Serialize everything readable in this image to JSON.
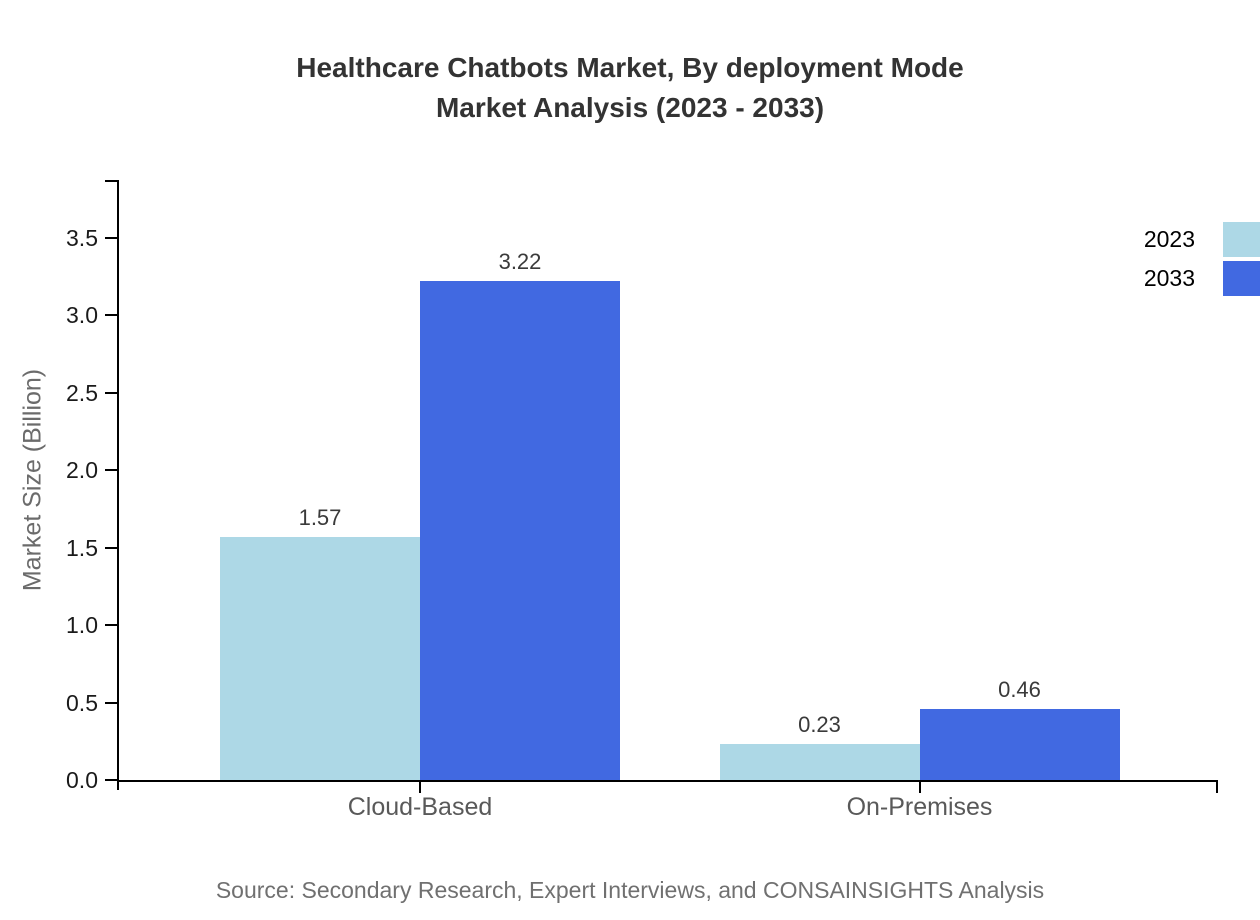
{
  "chart": {
    "title_line1": "Healthcare Chatbots Market, By deployment Mode",
    "title_line2": "Market Analysis (2023 - 2033)",
    "source": "Source: Secondary Research, Expert Interviews, and CONSAINSIGHTS Analysis"
  },
  "chart_data": {
    "type": "bar",
    "title": "Healthcare Chatbots Market, By deployment Mode Market Analysis (2023 - 2033)",
    "categories": [
      "Cloud-Based",
      "On-Premises"
    ],
    "series": [
      {
        "name": "2023",
        "color": "#add8e6",
        "values": [
          1.57,
          0.23
        ]
      },
      {
        "name": "2033",
        "color": "#4169e1",
        "values": [
          3.22,
          0.46
        ]
      }
    ],
    "xlabel": "",
    "ylabel": "Market Size (Billion)",
    "ylim": [
      0,
      3.87
    ],
    "yticks": [
      "0.0",
      "0.5",
      "1.0",
      "1.5",
      "2.0",
      "2.5",
      "3.0",
      "3.5"
    ],
    "grid": false,
    "legend_position": "upper-right-outside",
    "value_labels": true,
    "source": "Source: Secondary Research, Expert Interviews, and CONSAINSIGHTS Analysis"
  }
}
